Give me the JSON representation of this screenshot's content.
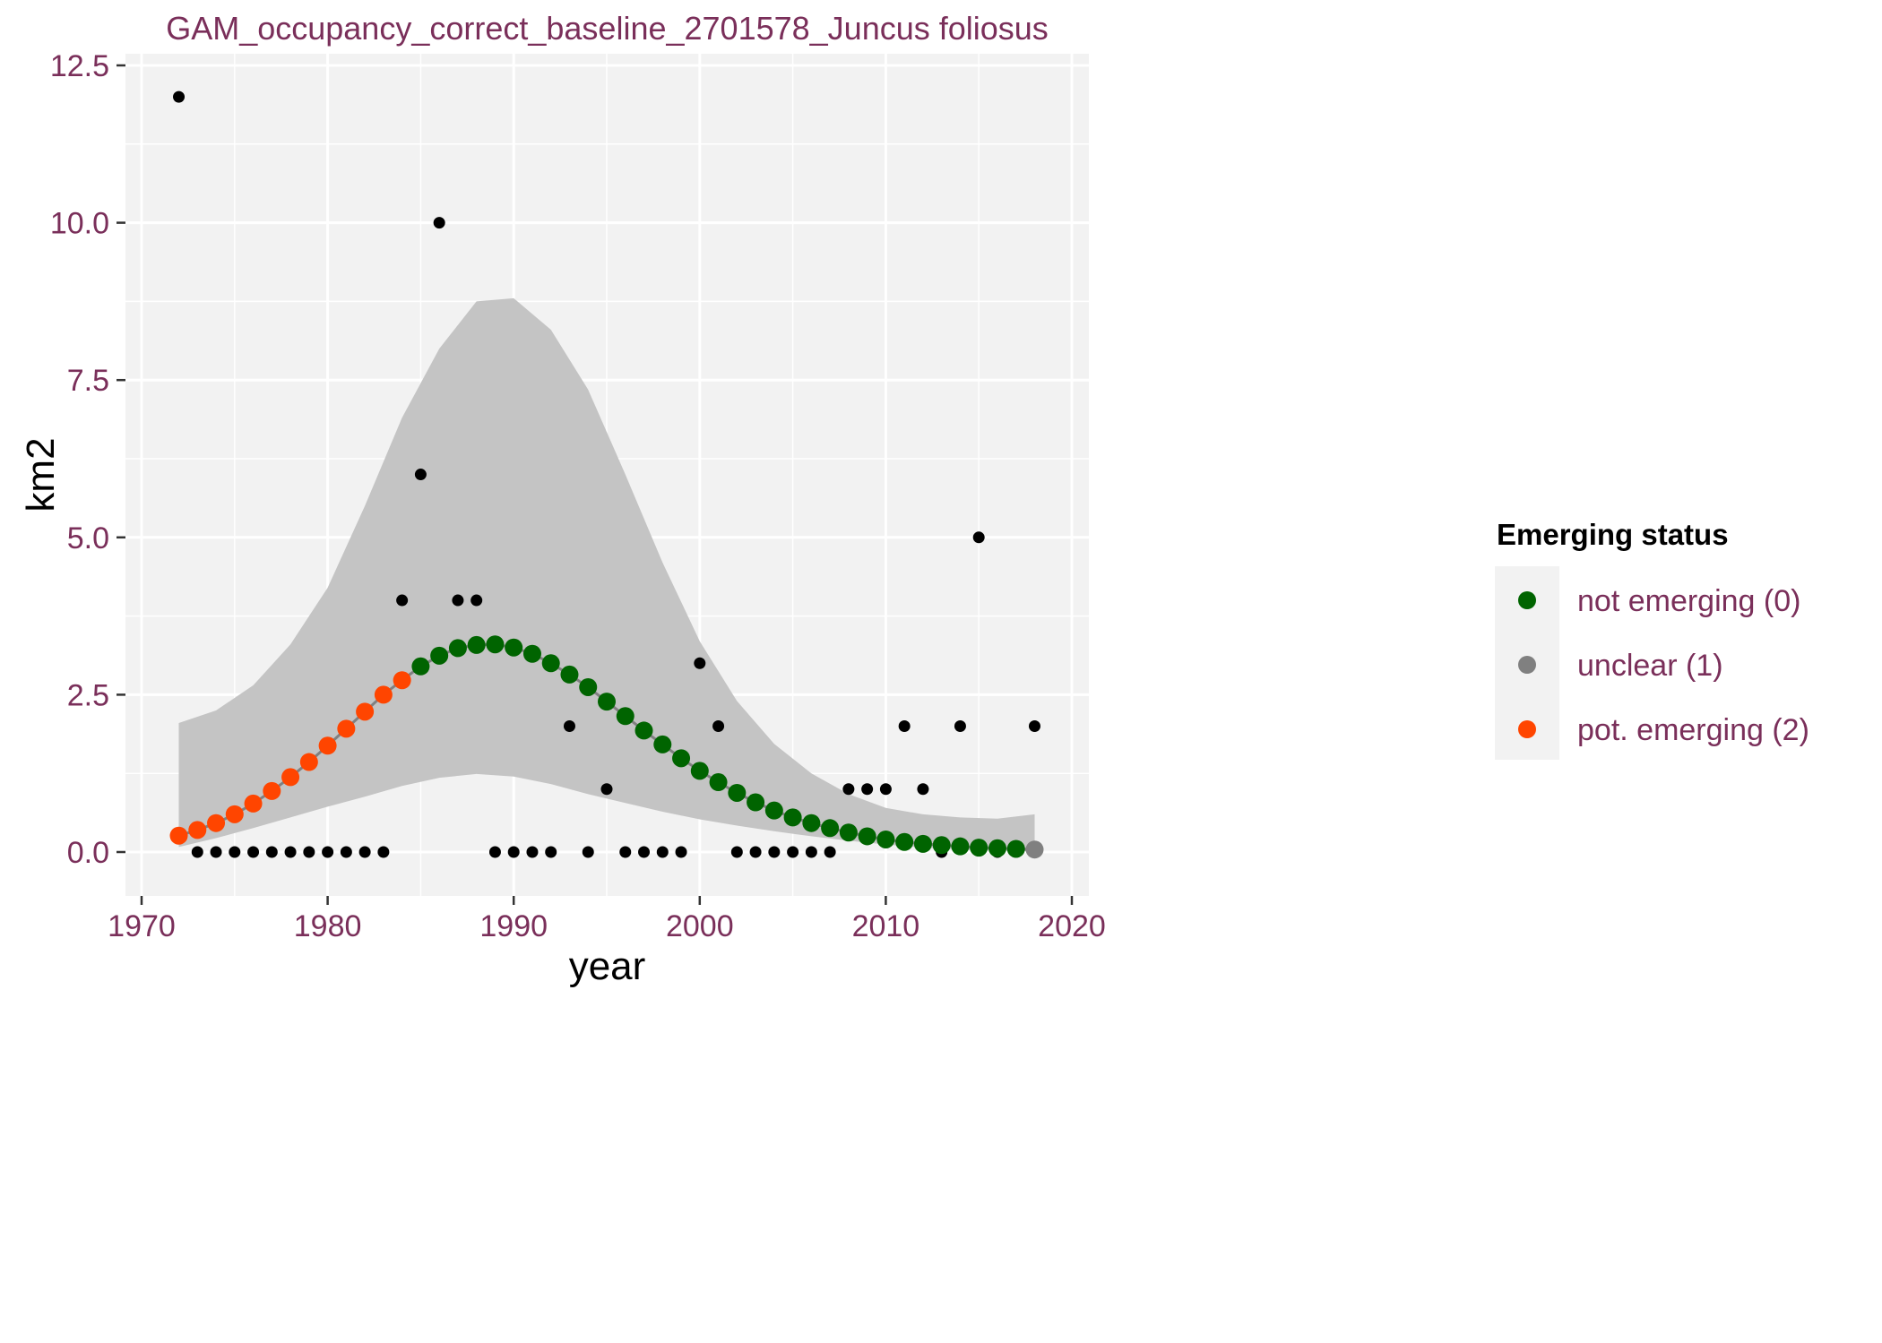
{
  "chart_data": {
    "type": "scatter",
    "title": "GAM_occupancy_correct_baseline_2701578_Juncus foliosus",
    "xlabel": "year",
    "ylabel": "km2",
    "xlim": [
      1970,
      2020
    ],
    "ylim": [
      0,
      12.5
    ],
    "x_ticks": [
      "1970",
      "1980",
      "1990",
      "2000",
      "2010",
      "2020"
    ],
    "y_ticks": [
      "0.0",
      "2.5",
      "5.0",
      "7.5",
      "10.0",
      "12.5"
    ],
    "grid": true,
    "legend": {
      "title": "Emerging status",
      "position": "right",
      "entries": [
        {
          "label": "not emerging (0)",
          "color": "#006400"
        },
        {
          "label": "unclear (1)",
          "color": "#808080"
        },
        {
          "label": "pot. emerging (2)",
          "color": "#ff4500"
        }
      ]
    },
    "colors": {
      "panel": "#f2f2f2",
      "ribbon": "#c4c4c4",
      "line": "#808080",
      "observed": "#000000",
      "not_emerging": "#006400",
      "unclear": "#808080",
      "pot_emerging": "#ff4500"
    },
    "observed": {
      "name": "observed",
      "x": [
        1972,
        1973,
        1974,
        1975,
        1976,
        1977,
        1978,
        1979,
        1980,
        1981,
        1982,
        1983,
        1984,
        1985,
        1986,
        1987,
        1988,
        1989,
        1990,
        1991,
        1992,
        1993,
        1994,
        1995,
        1996,
        1997,
        1998,
        1999,
        2000,
        2001,
        2002,
        2003,
        2004,
        2005,
        2006,
        2007,
        2008,
        2009,
        2010,
        2011,
        2012,
        2013,
        2014,
        2015,
        2016,
        2018
      ],
      "y": [
        12,
        0,
        0,
        0,
        0,
        0,
        0,
        0,
        0,
        0,
        0,
        0,
        4,
        6,
        10,
        4,
        4,
        0,
        0,
        0,
        0,
        2,
        0,
        1,
        0,
        0,
        0,
        0,
        3,
        2,
        0,
        0,
        0,
        0,
        0,
        0,
        1,
        1,
        1,
        2,
        1,
        0,
        2,
        5,
        0,
        2
      ]
    },
    "fitted": {
      "x": [
        1972,
        1973,
        1974,
        1975,
        1976,
        1977,
        1978,
        1979,
        1980,
        1981,
        1982,
        1983,
        1984,
        1985,
        1986,
        1987,
        1988,
        1989,
        1990,
        1991,
        1992,
        1993,
        1994,
        1995,
        1996,
        1997,
        1998,
        1999,
        2000,
        2001,
        2002,
        2003,
        2004,
        2005,
        2006,
        2007,
        2008,
        2009,
        2010,
        2011,
        2012,
        2013,
        2014,
        2015,
        2016,
        2017,
        2018
      ],
      "y": [
        0.26,
        0.35,
        0.46,
        0.6,
        0.77,
        0.97,
        1.19,
        1.43,
        1.69,
        1.96,
        2.23,
        2.5,
        2.73,
        2.95,
        3.12,
        3.24,
        3.29,
        3.3,
        3.25,
        3.15,
        3.0,
        2.82,
        2.62,
        2.39,
        2.16,
        1.93,
        1.71,
        1.49,
        1.29,
        1.11,
        0.94,
        0.79,
        0.66,
        0.55,
        0.46,
        0.38,
        0.31,
        0.25,
        0.2,
        0.16,
        0.13,
        0.11,
        0.09,
        0.07,
        0.06,
        0.05,
        0.04
      ],
      "status": [
        2,
        2,
        2,
        2,
        2,
        2,
        2,
        2,
        2,
        2,
        2,
        2,
        2,
        0,
        0,
        0,
        0,
        0,
        0,
        0,
        0,
        0,
        0,
        0,
        0,
        0,
        0,
        0,
        0,
        0,
        0,
        0,
        0,
        0,
        0,
        0,
        0,
        0,
        0,
        0,
        0,
        0,
        0,
        0,
        0,
        0,
        1
      ]
    },
    "ribbon": {
      "x": [
        1972,
        1974,
        1976,
        1978,
        1980,
        1982,
        1984,
        1986,
        1988,
        1990,
        1992,
        1994,
        1996,
        1998,
        2000,
        2002,
        2004,
        2006,
        2008,
        2010,
        2012,
        2014,
        2016,
        2018
      ],
      "lower": [
        0.08,
        0.22,
        0.38,
        0.55,
        0.72,
        0.88,
        1.05,
        1.18,
        1.24,
        1.2,
        1.08,
        0.92,
        0.78,
        0.64,
        0.52,
        0.42,
        0.33,
        0.25,
        0.18,
        0.12,
        0.07,
        0.04,
        0.02,
        0.01
      ],
      "upper": [
        2.05,
        2.25,
        2.65,
        3.3,
        4.2,
        5.5,
        6.9,
        8.0,
        8.75,
        8.8,
        8.3,
        7.35,
        6.0,
        4.6,
        3.35,
        2.4,
        1.72,
        1.25,
        0.92,
        0.7,
        0.6,
        0.55,
        0.53,
        0.6
      ]
    }
  }
}
